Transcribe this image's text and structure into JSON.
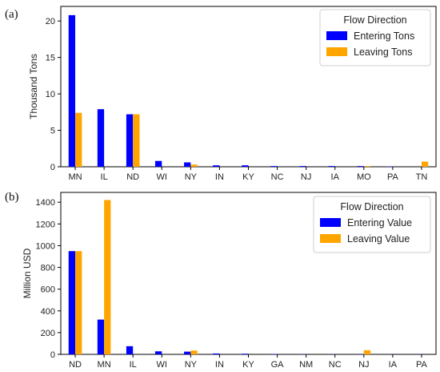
{
  "colors": {
    "entering": "#0000ff",
    "leaving": "#ffa500"
  },
  "panel_labels": [
    "(a)",
    "(b)"
  ],
  "chart_data": [
    {
      "type": "bar",
      "categories": [
        "MN",
        "IL",
        "ND",
        "WI",
        "NY",
        "IN",
        "KY",
        "NC",
        "NJ",
        "IA",
        "MO",
        "PA",
        "TN"
      ],
      "series": [
        {
          "name": "Entering Tons",
          "values": [
            20.8,
            7.9,
            7.2,
            0.8,
            0.6,
            0.2,
            0.2,
            0.1,
            0.1,
            0.1,
            0.1,
            0.05,
            0.0
          ]
        },
        {
          "name": "Leaving Tons",
          "values": [
            7.4,
            0.0,
            7.2,
            0.0,
            0.3,
            0.0,
            0.0,
            0.0,
            0.0,
            0.0,
            0.1,
            0.0,
            0.7
          ]
        }
      ],
      "ylabel": "Thousand Tons",
      "xlabel": "",
      "ylim": [
        0,
        22
      ],
      "yticks": [
        0,
        5,
        10,
        15,
        20
      ],
      "legend_title": "Flow Direction",
      "legend_position": "top-right",
      "grid": false
    },
    {
      "type": "bar",
      "categories": [
        "ND",
        "MN",
        "IL",
        "WI",
        "NY",
        "IN",
        "KY",
        "GA",
        "NM",
        "NC",
        "NJ",
        "IA",
        "PA"
      ],
      "series": [
        {
          "name": "Entering Value",
          "values": [
            950,
            320,
            75,
            28,
            25,
            8,
            6,
            3,
            2,
            2,
            2,
            1,
            1
          ]
        },
        {
          "name": "Leaving Value",
          "values": [
            950,
            1420,
            0,
            0,
            35,
            0,
            0,
            0,
            0,
            0,
            38,
            0,
            0
          ]
        }
      ],
      "ylabel": "Million USD",
      "xlabel": "",
      "ylim": [
        0,
        1490
      ],
      "yticks": [
        0,
        200,
        400,
        600,
        800,
        1000,
        1200,
        1400
      ],
      "legend_title": "Flow Direction",
      "legend_position": "top-right",
      "grid": false
    }
  ]
}
